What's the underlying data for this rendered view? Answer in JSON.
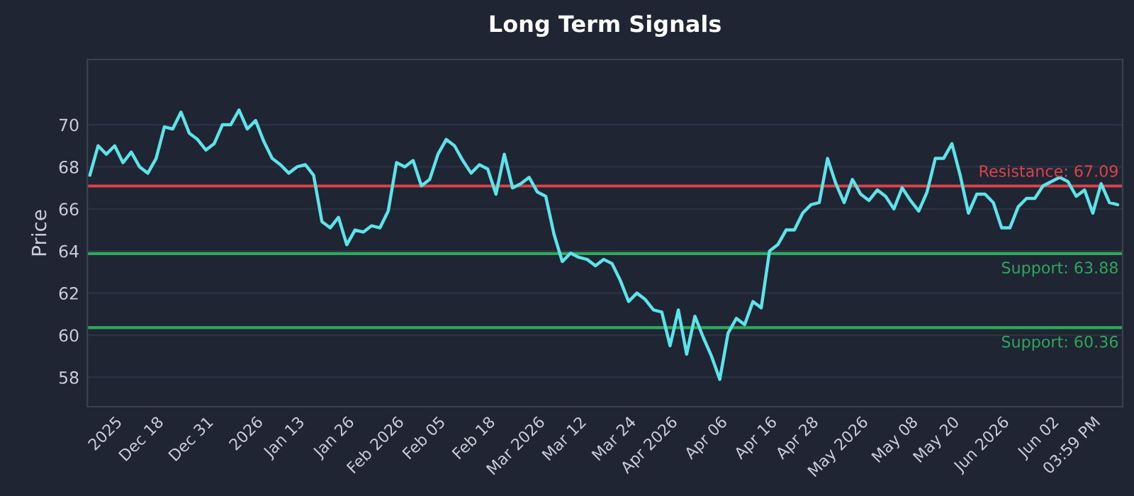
{
  "chart_data": {
    "type": "line",
    "title": "Long Term Signals",
    "ylabel": "Price",
    "categories": [
      null,
      null,
      null,
      "2025",
      null,
      null,
      null,
      null,
      "Dec 18",
      null,
      null,
      null,
      null,
      null,
      "Dec 31",
      null,
      null,
      null,
      null,
      null,
      "2026",
      null,
      null,
      null,
      null,
      "Jan 13",
      null,
      null,
      null,
      null,
      null,
      "Jan 26",
      null,
      null,
      null,
      null,
      null,
      "Feb 2026",
      null,
      null,
      null,
      null,
      "Feb 05",
      null,
      null,
      null,
      null,
      null,
      "Feb 18",
      null,
      null,
      null,
      null,
      null,
      "Mar 2026",
      null,
      null,
      null,
      null,
      "Mar 12",
      null,
      null,
      null,
      null,
      null,
      "Mar 24",
      null,
      null,
      null,
      null,
      "Apr 2026",
      null,
      null,
      null,
      null,
      null,
      "Apr 06",
      null,
      null,
      null,
      null,
      null,
      "Apr 16",
      null,
      null,
      null,
      null,
      "Apr 28",
      null,
      null,
      null,
      null,
      null,
      "May 2026",
      null,
      null,
      null,
      null,
      null,
      "May 08",
      null,
      null,
      null,
      null,
      "May 20",
      null,
      null,
      null,
      null,
      null,
      "Jun 2026",
      null,
      null,
      null,
      null,
      null,
      "Jun 02",
      null,
      null,
      null,
      null,
      "03:59 PM",
      null,
      null,
      null
    ],
    "series": [
      {
        "color": "#5fe3ea",
        "values": [
          67.6,
          69.0,
          68.6,
          69.0,
          68.2,
          68.7,
          68.0,
          67.7,
          68.4,
          69.9,
          69.8,
          70.6,
          69.6,
          69.3,
          68.8,
          69.1,
          70.0,
          70.0,
          70.7,
          69.8,
          70.2,
          69.2,
          68.4,
          68.1,
          67.7,
          68.0,
          68.1,
          67.6,
          65.4,
          65.1,
          65.6,
          64.3,
          65.0,
          64.9,
          65.2,
          65.1,
          65.9,
          68.2,
          68.0,
          68.3,
          67.1,
          67.4,
          68.6,
          69.3,
          69.0,
          68.3,
          67.7,
          68.1,
          67.9,
          66.7,
          68.6,
          67.0,
          67.2,
          67.5,
          66.8,
          66.6,
          64.8,
          63.5,
          63.9,
          63.7,
          63.6,
          63.3,
          63.6,
          63.4,
          62.6,
          61.6,
          62.0,
          61.7,
          61.2,
          61.1,
          59.5,
          61.2,
          59.1,
          60.9,
          59.9,
          59.0,
          57.9,
          60.1,
          60.8,
          60.5,
          61.6,
          61.3,
          64.0,
          64.3,
          65.0,
          65.0,
          65.8,
          66.2,
          66.3,
          68.4,
          67.2,
          66.3,
          67.4,
          66.7,
          66.4,
          66.9,
          66.6,
          66.0,
          67.0,
          66.4,
          65.9,
          66.8,
          68.4,
          68.4,
          69.1,
          67.6,
          65.8,
          66.7,
          66.7,
          66.3,
          65.1,
          65.1,
          66.1,
          66.5,
          66.5,
          67.1,
          67.3,
          67.5,
          67.3,
          66.6,
          66.9,
          65.8,
          67.2,
          66.3,
          66.2
        ]
      }
    ],
    "ylim": [
      56.6,
      73.1
    ],
    "yticks": [
      58,
      60,
      62,
      64,
      66,
      68,
      70
    ],
    "ref_lines": [
      {
        "axis": "y",
        "value": 67.09,
        "label": "Resistance: 67.09",
        "color": "#d9434a"
      },
      {
        "axis": "y",
        "value": 63.88,
        "label": "Support: 63.88",
        "color": "#2ea85a"
      },
      {
        "axis": "y",
        "value": 60.36,
        "label": "Support: 60.36",
        "color": "#2ea85a"
      }
    ],
    "grid": "y",
    "legend": false,
    "marker": "none",
    "line_style": "solid"
  }
}
